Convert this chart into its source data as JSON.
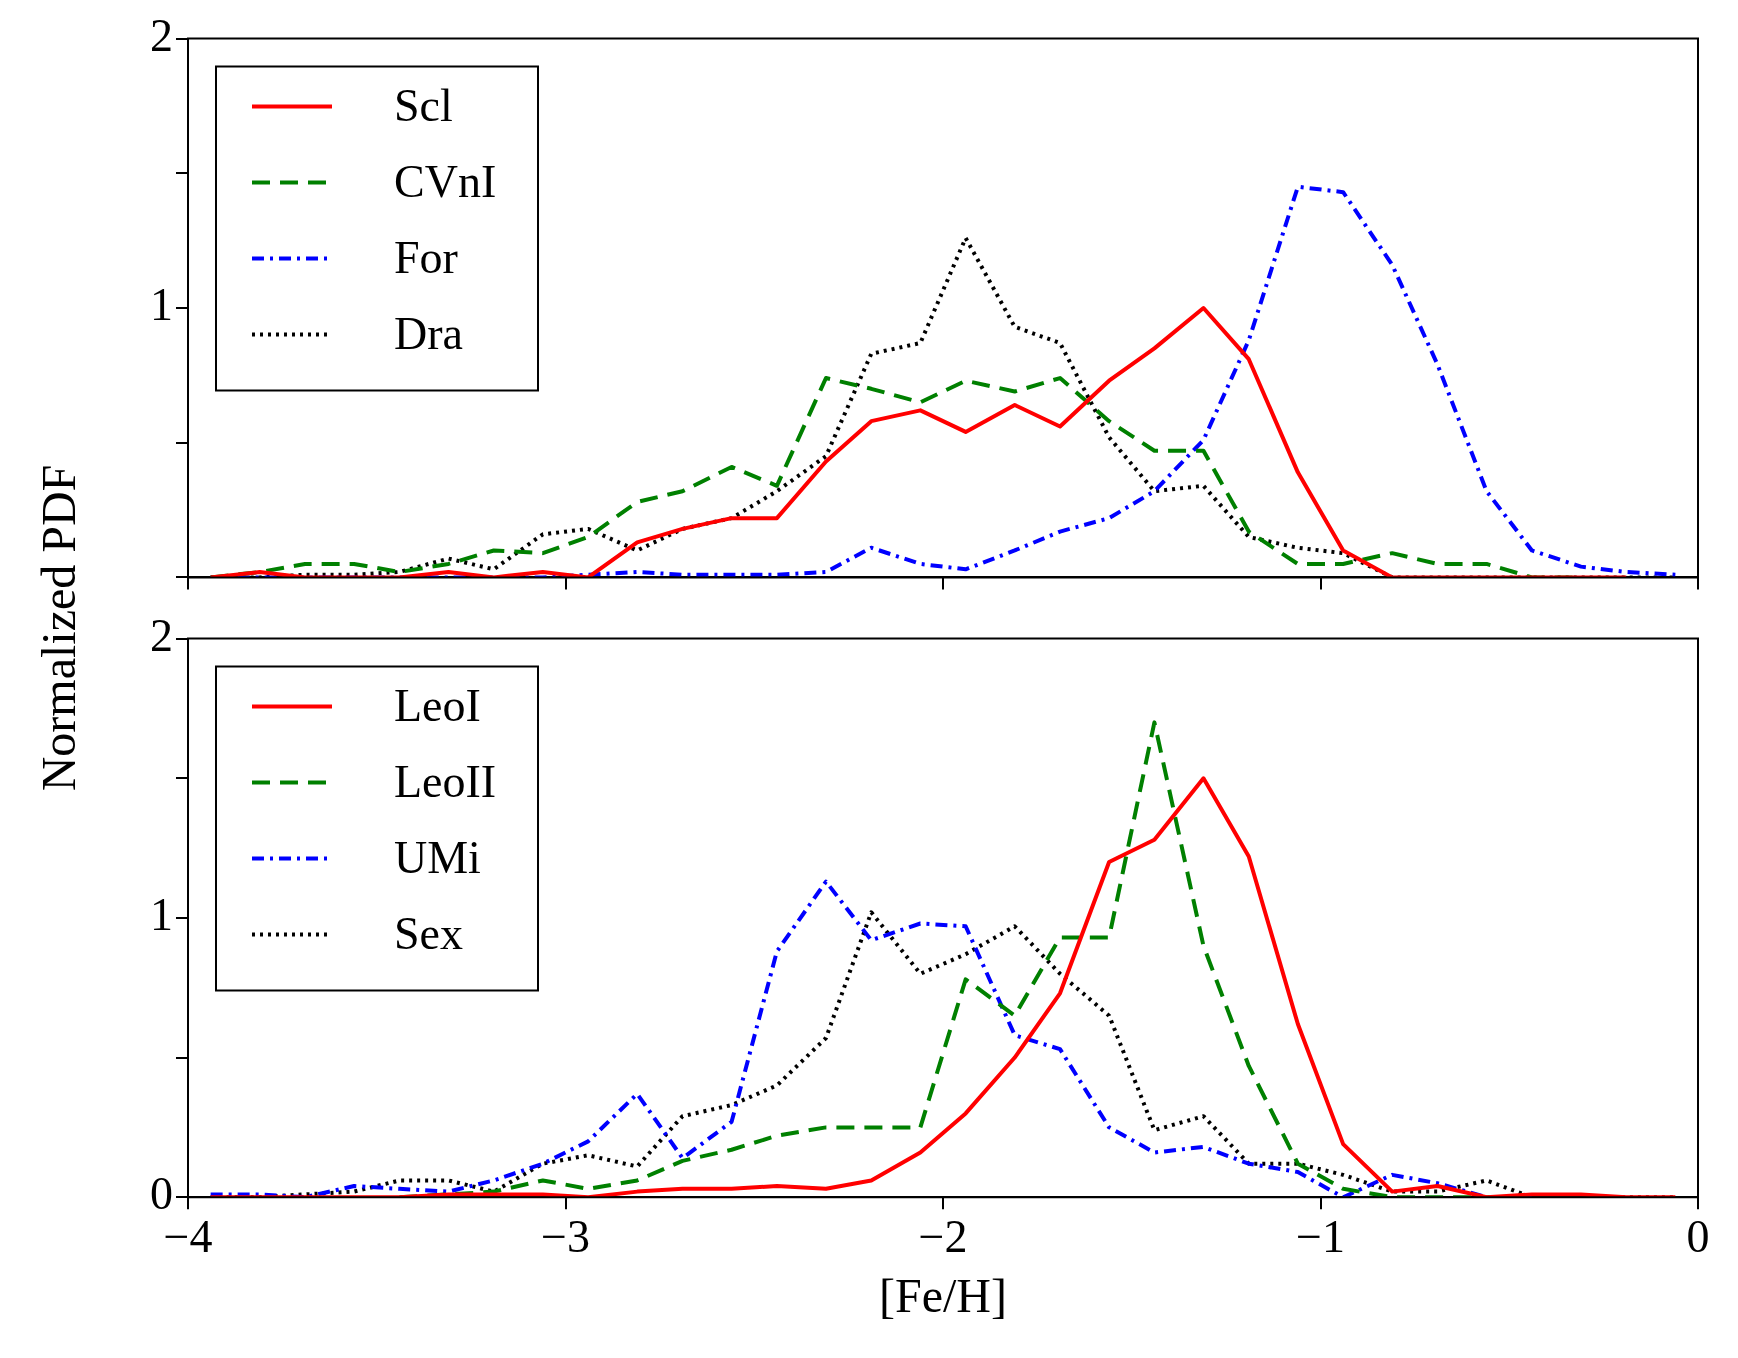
{
  "chart_data": [
    {
      "type": "line",
      "ylabel": "Normalized PDF",
      "x": [
        -3.94,
        -3.81,
        -3.69,
        -3.56,
        -3.44,
        -3.31,
        -3.19,
        -3.06,
        -2.94,
        -2.81,
        -2.69,
        -2.56,
        -2.44,
        -2.31,
        -2.19,
        -2.06,
        -1.94,
        -1.81,
        -1.69,
        -1.56,
        -1.44,
        -1.31,
        -1.19,
        -1.06,
        -0.94,
        -0.81,
        -0.69,
        -0.56,
        -0.44,
        -0.31,
        -0.19,
        -0.06
      ],
      "series": [
        {
          "name": "Scl",
          "color": "#ff0000",
          "line_style": "solid",
          "values": [
            0,
            0.02,
            0,
            0,
            0,
            0.02,
            0,
            0.02,
            0,
            0.13,
            0.18,
            0.22,
            0.22,
            0.43,
            0.58,
            0.62,
            0.54,
            0.64,
            0.56,
            0.73,
            0.85,
            1.0,
            0.81,
            0.39,
            0.1,
            0,
            0,
            0,
            0,
            0,
            0,
            null
          ]
        },
        {
          "name": "CVnI",
          "color": "#008000",
          "line_style": "dashed",
          "values": [
            0,
            0.02,
            0.05,
            0.05,
            0.02,
            0.05,
            0.1,
            0.09,
            0.15,
            0.28,
            0.32,
            0.41,
            0.34,
            0.74,
            0.7,
            0.65,
            0.73,
            0.69,
            0.74,
            0.58,
            0.47,
            0.47,
            0.17,
            0.05,
            0.05,
            0.09,
            0.05,
            0.05,
            0,
            0,
            null,
            null
          ]
        },
        {
          "name": "For",
          "color": "#0000ff",
          "line_style": "dashdot",
          "values": [
            0,
            0,
            0,
            0,
            0,
            0,
            0,
            0,
            0.01,
            0.02,
            0.01,
            0.01,
            0.01,
            0.02,
            0.11,
            0.05,
            0.03,
            0.1,
            0.17,
            0.22,
            0.32,
            0.51,
            0.88,
            1.45,
            1.43,
            1.16,
            0.79,
            0.32,
            0.1,
            0.04,
            0.02,
            0.01
          ]
        },
        {
          "name": "Dra",
          "color": "#000000",
          "line_style": "dotted",
          "values": [
            0,
            0,
            0.01,
            0.01,
            0.02,
            0.07,
            0.03,
            0.16,
            0.18,
            0.1,
            0.18,
            0.22,
            0.32,
            0.45,
            0.83,
            0.87,
            1.26,
            0.93,
            0.87,
            0.52,
            0.32,
            0.34,
            0.15,
            0.11,
            0.09,
            0,
            0,
            0,
            0,
            0,
            0,
            0
          ]
        }
      ],
      "xlim": [
        -4,
        0
      ],
      "xticks": [
        -4,
        -3,
        -2,
        -1,
        0
      ],
      "ylim": [
        0,
        2
      ],
      "yticks": [
        {
          "value": 0,
          "label": null
        },
        {
          "value": 0.5,
          "label": null
        },
        1,
        {
          "value": 1.5,
          "label": null
        },
        2
      ],
      "tick_labels": "y",
      "legend": "top left",
      "grid": false
    },
    {
      "type": "line",
      "xlabel": "[Fe/H]",
      "x": [
        -3.94,
        -3.81,
        -3.69,
        -3.56,
        -3.44,
        -3.31,
        -3.19,
        -3.06,
        -2.94,
        -2.81,
        -2.69,
        -2.56,
        -2.44,
        -2.31,
        -2.19,
        -2.06,
        -1.94,
        -1.81,
        -1.69,
        -1.56,
        -1.44,
        -1.31,
        -1.19,
        -1.06,
        -0.94,
        -0.81,
        -0.69,
        -0.56,
        -0.44,
        -0.31,
        -0.19,
        -0.06
      ],
      "series": [
        {
          "name": "LeoI",
          "color": "#ff0000",
          "line_style": "solid",
          "values": [
            0,
            0,
            0,
            0,
            0,
            0.01,
            0.01,
            0.01,
            0,
            0.02,
            0.03,
            0.03,
            0.04,
            0.03,
            0.06,
            0.16,
            0.3,
            0.5,
            0.73,
            1.2,
            1.28,
            1.5,
            1.22,
            0.62,
            0.19,
            0.02,
            0.04,
            0,
            0.01,
            0.01,
            0,
            0
          ]
        },
        {
          "name": "LeoII",
          "color": "#008000",
          "line_style": "dashed",
          "values": [
            null,
            null,
            null,
            null,
            0,
            0.01,
            0.02,
            0.06,
            0.03,
            0.06,
            0.13,
            0.17,
            0.22,
            0.25,
            0.25,
            0.25,
            0.78,
            0.65,
            0.93,
            0.93,
            1.7,
            0.9,
            0.47,
            0.12,
            0.03,
            0,
            0,
            0,
            0,
            null,
            null,
            null
          ]
        },
        {
          "name": "UMi",
          "color": "#0000ff",
          "line_style": "dashdot",
          "values": [
            0.01,
            0.01,
            0,
            0.04,
            0.03,
            0.02,
            0.06,
            0.12,
            0.2,
            0.37,
            0.14,
            0.27,
            0.88,
            1.13,
            0.92,
            0.98,
            0.97,
            0.58,
            0.53,
            0.25,
            0.16,
            0.18,
            0.12,
            0.09,
            0,
            0.08,
            0.05,
            0,
            0,
            null,
            null,
            null
          ]
        },
        {
          "name": "Sex",
          "color": "#000000",
          "line_style": "dotted",
          "values": [
            0,
            0,
            0.01,
            0.02,
            0.06,
            0.06,
            0.02,
            0.12,
            0.15,
            0.11,
            0.29,
            0.33,
            0.4,
            0.57,
            1.02,
            0.8,
            0.87,
            0.97,
            0.8,
            0.65,
            0.24,
            0.29,
            0.12,
            0.12,
            0.08,
            0.02,
            0.02,
            0.06,
            0,
            0,
            0,
            0
          ]
        }
      ],
      "xlim": [
        -4,
        0
      ],
      "xticks": [
        -4,
        -3,
        -2,
        -1,
        0
      ],
      "ylim": [
        0,
        2
      ],
      "yticks": [
        0,
        {
          "value": 0.5,
          "label": null
        },
        1,
        {
          "value": 1.5,
          "label": null
        },
        2
      ],
      "legend": "top left",
      "grid": false
    }
  ]
}
